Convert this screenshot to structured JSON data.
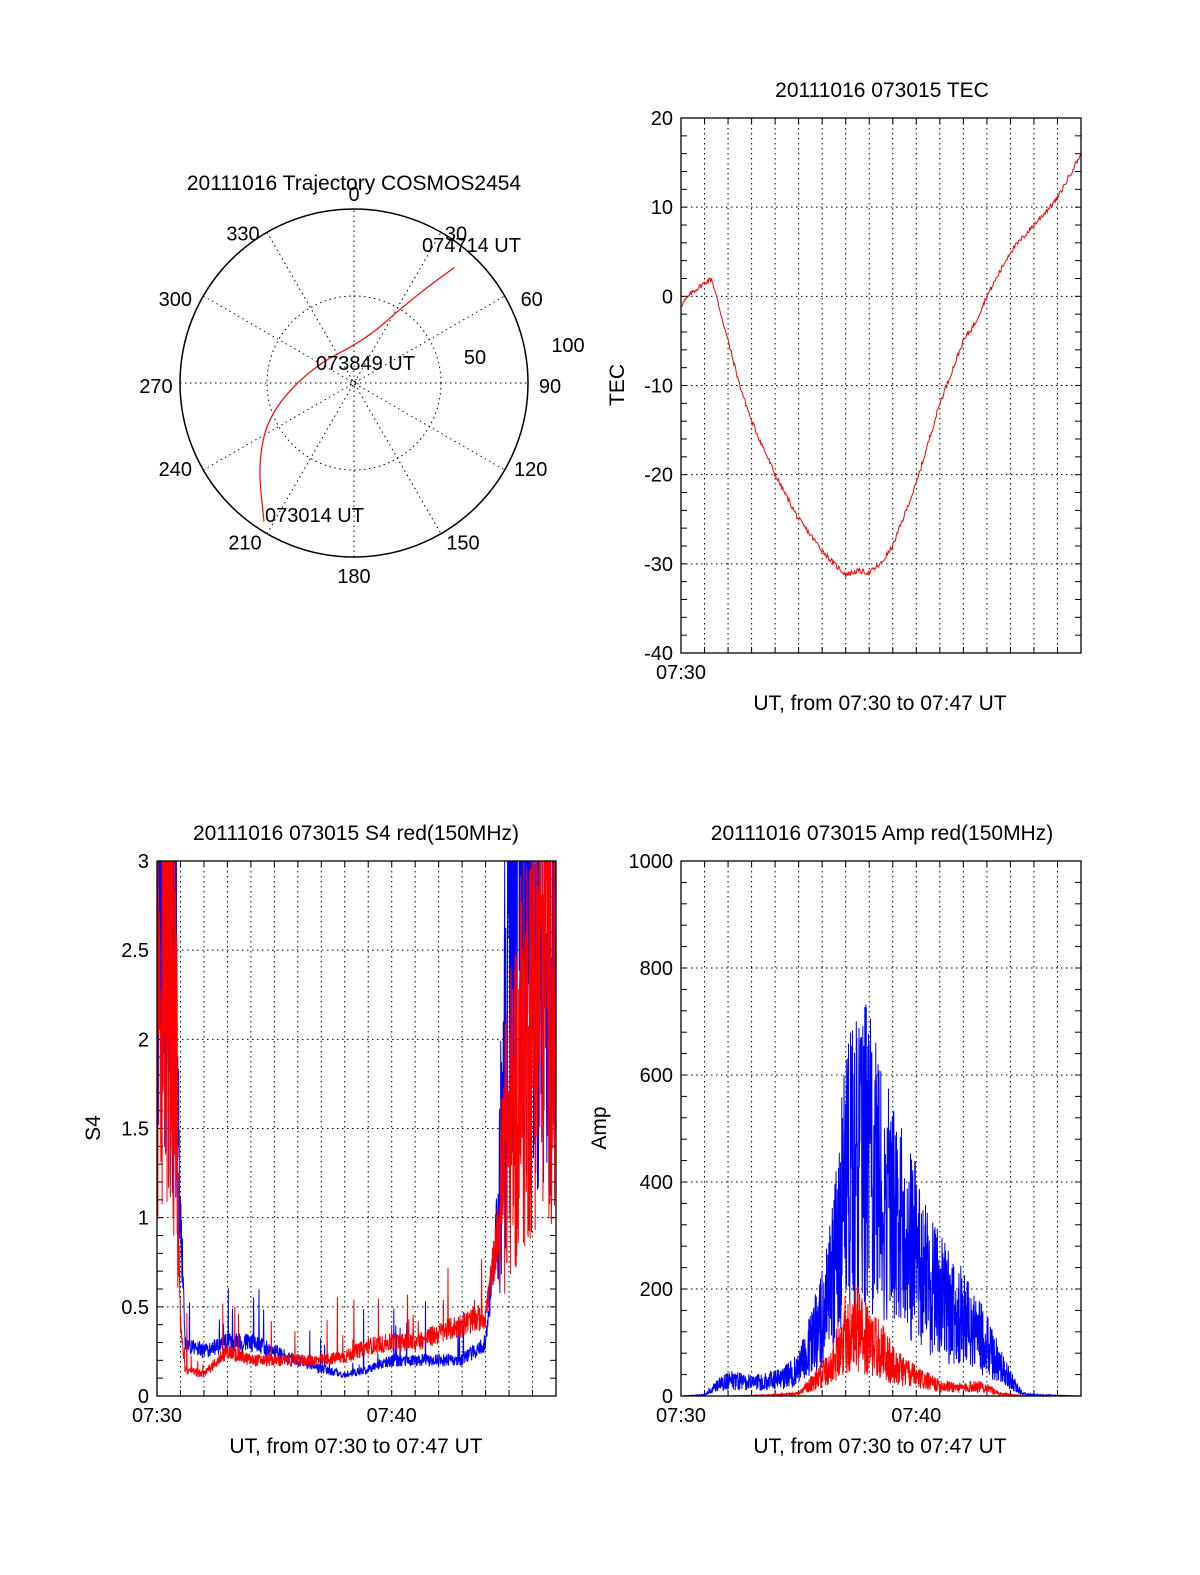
{
  "colors": {
    "red": "#ff0000",
    "blue": "#0000ff",
    "axis": "#000000",
    "background": "#ffffff"
  },
  "chart_data": [
    {
      "type": "polar",
      "title": "20111016 Trajectory COSMOS2454",
      "angle_labels": [
        "0",
        "30",
        "60",
        "90",
        "120",
        "150",
        "180",
        "210",
        "240",
        "270",
        "300",
        "330"
      ],
      "radial_labels": [
        "50",
        "100"
      ],
      "grid": true,
      "series": [
        {
          "color": "red",
          "points": [
            {
              "az": 213,
              "zenith": 95
            },
            {
              "az": 230,
              "zenith": 72
            },
            {
              "az": 250,
              "zenith": 52
            },
            {
              "az": 290,
              "zenith": 26
            },
            {
              "az": 15,
              "zenith": 26
            },
            {
              "az": 32,
              "zenith": 50
            },
            {
              "az": 38,
              "zenith": 72
            },
            {
              "az": 41,
              "zenith": 88
            }
          ]
        }
      ],
      "annotations": [
        "073014 UT",
        "073849 UT",
        "074714 UT"
      ]
    },
    {
      "type": "line",
      "title": "20111016 073015 TEC",
      "xlabel": "UT, from 07:30 to 07:47 UT",
      "ylabel": "TEC",
      "x_tick_labels": [
        "07:30"
      ],
      "y_ticks": [
        -40,
        -30,
        -20,
        -10,
        0,
        10,
        20
      ],
      "xlim": [
        0,
        17
      ],
      "ylim": [
        -40,
        20
      ],
      "grid": true,
      "series": [
        {
          "color": "red",
          "x": [
            0,
            0.5,
            1,
            1.3,
            2,
            2.5,
            3,
            4,
            5,
            6,
            6.5,
            7,
            7.5,
            8,
            8.5,
            9,
            10,
            11,
            12,
            12.5,
            13,
            14,
            15,
            16,
            17
          ],
          "y": [
            -1,
            0.5,
            1.5,
            2,
            -5,
            -10,
            -14,
            -20,
            -25,
            -28.5,
            -30,
            -31.2,
            -30.8,
            -31,
            -30,
            -28,
            -21,
            -12,
            -5,
            -3,
            0,
            5,
            8,
            11,
            16
          ]
        }
      ]
    },
    {
      "type": "line",
      "title": "20111016 073015 S4 red(150MHz)",
      "xlabel": "UT, from 07:30 to 07:47 UT",
      "ylabel": "S4",
      "x_tick_labels": [
        "07:30",
        "07:40"
      ],
      "y_ticks": [
        "0",
        "0.5",
        "1",
        "1.5",
        "2",
        "2.5",
        "3"
      ],
      "xlim": [
        0,
        17
      ],
      "ylim": [
        0,
        3
      ],
      "grid": true,
      "series": [
        {
          "color": "blue",
          "x": [
            0,
            0.5,
            0.8,
            1.0,
            1.2,
            2,
            3,
            4,
            5,
            6,
            7,
            8,
            9,
            10,
            11,
            12,
            13,
            14,
            14.5,
            15,
            15.5,
            16,
            16.5,
            17
          ],
          "y": [
            2.8,
            3,
            2.5,
            1.0,
            0.3,
            0.25,
            0.3,
            0.3,
            0.25,
            0.2,
            0.15,
            0.12,
            0.15,
            0.2,
            0.2,
            0.2,
            0.2,
            0.3,
            1.0,
            2.5,
            3,
            2.8,
            2.5,
            2.2
          ]
        },
        {
          "color": "red",
          "x": [
            0,
            0.5,
            0.8,
            1.0,
            1.2,
            2,
            3,
            4,
            5,
            6,
            7,
            8,
            9,
            10,
            11,
            12,
            13,
            14,
            14.5,
            15,
            15.5,
            16,
            16.5,
            17
          ],
          "y": [
            2,
            2.8,
            2,
            0.4,
            0.15,
            0.12,
            0.25,
            0.2,
            0.2,
            0.2,
            0.2,
            0.22,
            0.28,
            0.3,
            0.3,
            0.35,
            0.4,
            0.45,
            0.9,
            1.5,
            1.8,
            2.2,
            2.5,
            2.3
          ]
        }
      ]
    },
    {
      "type": "line",
      "title": "20111016 073015 Amp red(150MHz)",
      "xlabel": "UT, from 07:30 to 07:47 UT",
      "ylabel": "Amp",
      "x_tick_labels": [
        "07:30",
        "07:40"
      ],
      "y_ticks": [
        0,
        200,
        400,
        600,
        800,
        1000
      ],
      "xlim": [
        0,
        17
      ],
      "ylim": [
        0,
        1000
      ],
      "grid": true,
      "series": [
        {
          "color": "blue",
          "x": [
            0,
            1,
            1.5,
            2,
            3,
            4,
            5,
            6,
            6.5,
            7,
            7.5,
            8,
            8.5,
            9,
            9.5,
            10,
            10.5,
            11,
            11.5,
            12,
            12.5,
            13,
            13.5,
            14,
            14.5,
            15,
            16,
            17
          ],
          "y": [
            0,
            2,
            20,
            30,
            25,
            30,
            50,
            150,
            250,
            400,
            480,
            450,
            400,
            350,
            300,
            280,
            220,
            200,
            160,
            150,
            120,
            100,
            60,
            30,
            5,
            2,
            1,
            0
          ]
        },
        {
          "color": "red",
          "x": [
            0,
            2,
            4,
            5,
            6,
            6.5,
            7,
            7.5,
            8,
            8.5,
            9,
            10,
            11,
            12,
            12.5,
            13,
            13.5,
            14,
            15,
            17
          ],
          "y": [
            0,
            0,
            2,
            5,
            40,
            70,
            120,
            130,
            100,
            90,
            60,
            35,
            20,
            15,
            20,
            15,
            5,
            2,
            0,
            0
          ]
        }
      ]
    }
  ]
}
